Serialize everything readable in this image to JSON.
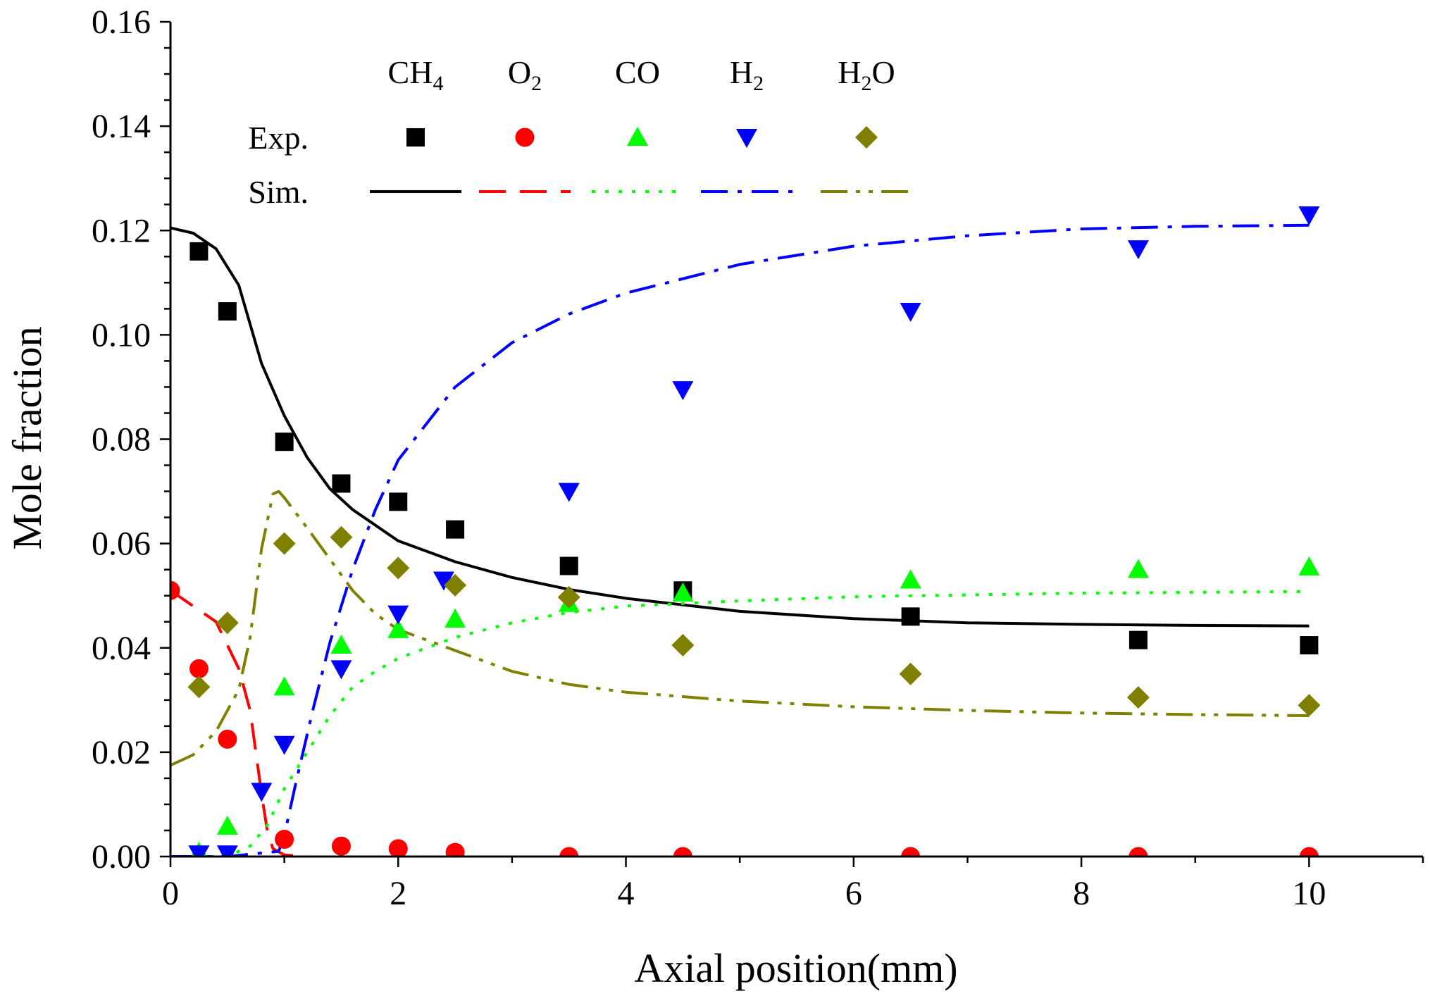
{
  "chart_data": {
    "type": "scatter",
    "xlabel": "Axial position(mm)",
    "ylabel": "Mole fraction",
    "xlim": [
      0,
      11
    ],
    "ylim": [
      0,
      0.16
    ],
    "xticks": [
      0,
      2,
      4,
      6,
      8,
      10
    ],
    "xtick_labels": [
      "0",
      "2",
      "4",
      "6",
      "8",
      "10"
    ],
    "yticks": [
      0,
      0.02,
      0.04,
      0.06,
      0.08,
      0.1,
      0.12,
      0.14,
      0.16
    ],
    "ytick_labels": [
      "0.00",
      "0.02",
      "0.04",
      "0.06",
      "0.08",
      "0.10",
      "0.12",
      "0.14",
      "0.16"
    ],
    "legend": {
      "position": "top-center",
      "row_exp_label": "Exp.",
      "row_sim_label": "Sim."
    },
    "series": [
      {
        "name": "CH4",
        "base": "CH",
        "sub": "4",
        "suffix": "",
        "color": "#000000",
        "marker": "square",
        "line_style": "solid",
        "exp": [
          [
            0.25,
            0.116
          ],
          [
            0.5,
            0.1045
          ],
          [
            1.0,
            0.0795
          ],
          [
            1.5,
            0.0715
          ],
          [
            2.0,
            0.068
          ],
          [
            2.5,
            0.0627
          ],
          [
            3.5,
            0.0557
          ],
          [
            4.5,
            0.051
          ],
          [
            6.5,
            0.046
          ],
          [
            8.5,
            0.0415
          ],
          [
            10.0,
            0.0405
          ]
        ],
        "sim": [
          [
            0,
            0.1205
          ],
          [
            0.2,
            0.1195
          ],
          [
            0.4,
            0.1165
          ],
          [
            0.6,
            0.1095
          ],
          [
            0.8,
            0.0945
          ],
          [
            1.0,
            0.0845
          ],
          [
            1.2,
            0.0765
          ],
          [
            1.4,
            0.0705
          ],
          [
            1.6,
            0.0665
          ],
          [
            2.0,
            0.0605
          ],
          [
            2.5,
            0.0565
          ],
          [
            3.0,
            0.0535
          ],
          [
            3.5,
            0.0512
          ],
          [
            4.0,
            0.0495
          ],
          [
            5.0,
            0.047
          ],
          [
            6.0,
            0.0456
          ],
          [
            7.0,
            0.0448
          ],
          [
            8.0,
            0.0445
          ],
          [
            9.0,
            0.0443
          ],
          [
            10.0,
            0.0442
          ]
        ]
      },
      {
        "name": "O2",
        "base": "O",
        "sub": "2",
        "suffix": "",
        "color": "#ff0000",
        "marker": "circle",
        "line_style": "dashed",
        "exp": [
          [
            0.0,
            0.051
          ],
          [
            0.25,
            0.036
          ],
          [
            0.5,
            0.0225
          ],
          [
            1.0,
            0.0033
          ],
          [
            1.5,
            0.002
          ],
          [
            2.0,
            0.0015
          ],
          [
            2.5,
            0.0008
          ],
          [
            3.5,
            0.0
          ],
          [
            4.5,
            0.0
          ],
          [
            6.5,
            0.0
          ],
          [
            8.5,
            0.0
          ],
          [
            10.0,
            0.0
          ]
        ],
        "sim": [
          [
            0,
            0.051
          ],
          [
            0.2,
            0.048
          ],
          [
            0.4,
            0.045
          ],
          [
            0.6,
            0.036
          ],
          [
            0.7,
            0.028
          ],
          [
            0.75,
            0.02
          ],
          [
            0.8,
            0.012
          ],
          [
            0.85,
            0.005
          ],
          [
            0.9,
            0.0015
          ],
          [
            1.0,
            0.0003
          ],
          [
            1.2,
            0.0
          ]
        ]
      },
      {
        "name": "CO",
        "base": "CO",
        "sub": "",
        "suffix": "",
        "color": "#00ff00",
        "marker": "triangle-up",
        "line_style": "dotted",
        "exp": [
          [
            0.25,
            0.0008
          ],
          [
            0.5,
            0.0058
          ],
          [
            1.0,
            0.0325
          ],
          [
            1.5,
            0.0405
          ],
          [
            2.0,
            0.0435
          ],
          [
            2.5,
            0.0455
          ],
          [
            3.5,
            0.0485
          ],
          [
            4.5,
            0.0505
          ],
          [
            6.5,
            0.053
          ],
          [
            8.5,
            0.055
          ],
          [
            10.0,
            0.0555
          ]
        ],
        "sim": [
          [
            0,
            0.0
          ],
          [
            0.5,
            0.0
          ],
          [
            0.7,
            0.002
          ],
          [
            0.85,
            0.006
          ],
          [
            1.0,
            0.013
          ],
          [
            1.2,
            0.02
          ],
          [
            1.4,
            0.027
          ],
          [
            1.6,
            0.0325
          ],
          [
            1.8,
            0.0355
          ],
          [
            2.0,
            0.038
          ],
          [
            2.5,
            0.042
          ],
          [
            3.0,
            0.0448
          ],
          [
            3.5,
            0.0468
          ],
          [
            4.0,
            0.048
          ],
          [
            5.0,
            0.049
          ],
          [
            6.0,
            0.0498
          ],
          [
            8.0,
            0.0505
          ],
          [
            10.0,
            0.0508
          ]
        ]
      },
      {
        "name": "H2",
        "base": "H",
        "sub": "2",
        "suffix": "",
        "color": "#0000ff",
        "marker": "triangle-down",
        "line_style": "dash-dot",
        "exp": [
          [
            0.25,
            0.0005
          ],
          [
            0.5,
            0.0005
          ],
          [
            0.8,
            0.0125
          ],
          [
            1.0,
            0.0215
          ],
          [
            1.5,
            0.036
          ],
          [
            2.0,
            0.0465
          ],
          [
            2.4,
            0.053
          ],
          [
            3.5,
            0.07
          ],
          [
            4.5,
            0.0895
          ],
          [
            6.5,
            0.1045
          ],
          [
            8.5,
            0.1165
          ],
          [
            10.0,
            0.123
          ]
        ],
        "sim": [
          [
            0,
            0.0
          ],
          [
            0.5,
            0.0
          ],
          [
            0.95,
            0.001
          ],
          [
            1.0,
            0.004
          ],
          [
            1.1,
            0.014
          ],
          [
            1.25,
            0.028
          ],
          [
            1.4,
            0.041
          ],
          [
            1.6,
            0.055
          ],
          [
            1.8,
            0.0665
          ],
          [
            2.0,
            0.076
          ],
          [
            2.5,
            0.09
          ],
          [
            3.0,
            0.0985
          ],
          [
            3.5,
            0.104
          ],
          [
            4.0,
            0.108
          ],
          [
            5.0,
            0.1135
          ],
          [
            6.0,
            0.117
          ],
          [
            7.0,
            0.119
          ],
          [
            8.0,
            0.1203
          ],
          [
            9.0,
            0.1208
          ],
          [
            10.0,
            0.121
          ]
        ]
      },
      {
        "name": "H2O",
        "base": "H",
        "sub": "2",
        "suffix": "O",
        "color": "#808000",
        "marker": "diamond",
        "line_style": "dash-dot-dot",
        "exp": [
          [
            0.25,
            0.0325
          ],
          [
            0.5,
            0.0448
          ],
          [
            1.0,
            0.06
          ],
          [
            1.5,
            0.0612
          ],
          [
            2.0,
            0.0553
          ],
          [
            2.5,
            0.052
          ],
          [
            3.5,
            0.0497
          ],
          [
            4.5,
            0.0405
          ],
          [
            6.5,
            0.035
          ],
          [
            8.5,
            0.0305
          ],
          [
            10.0,
            0.029
          ]
        ],
        "sim": [
          [
            0,
            0.0175
          ],
          [
            0.2,
            0.0195
          ],
          [
            0.4,
            0.024
          ],
          [
            0.6,
            0.032
          ],
          [
            0.7,
            0.042
          ],
          [
            0.8,
            0.059
          ],
          [
            0.9,
            0.0695
          ],
          [
            0.95,
            0.07
          ],
          [
            1.0,
            0.0688
          ],
          [
            1.2,
            0.063
          ],
          [
            1.4,
            0.057
          ],
          [
            1.6,
            0.051
          ],
          [
            1.8,
            0.0465
          ],
          [
            2.0,
            0.0435
          ],
          [
            2.5,
            0.0395
          ],
          [
            3.0,
            0.0355
          ],
          [
            3.5,
            0.033
          ],
          [
            4.0,
            0.0315
          ],
          [
            5.0,
            0.0298
          ],
          [
            6.0,
            0.0287
          ],
          [
            7.0,
            0.028
          ],
          [
            8.0,
            0.0275
          ],
          [
            9.0,
            0.0272
          ],
          [
            10.0,
            0.027
          ]
        ]
      }
    ]
  }
}
